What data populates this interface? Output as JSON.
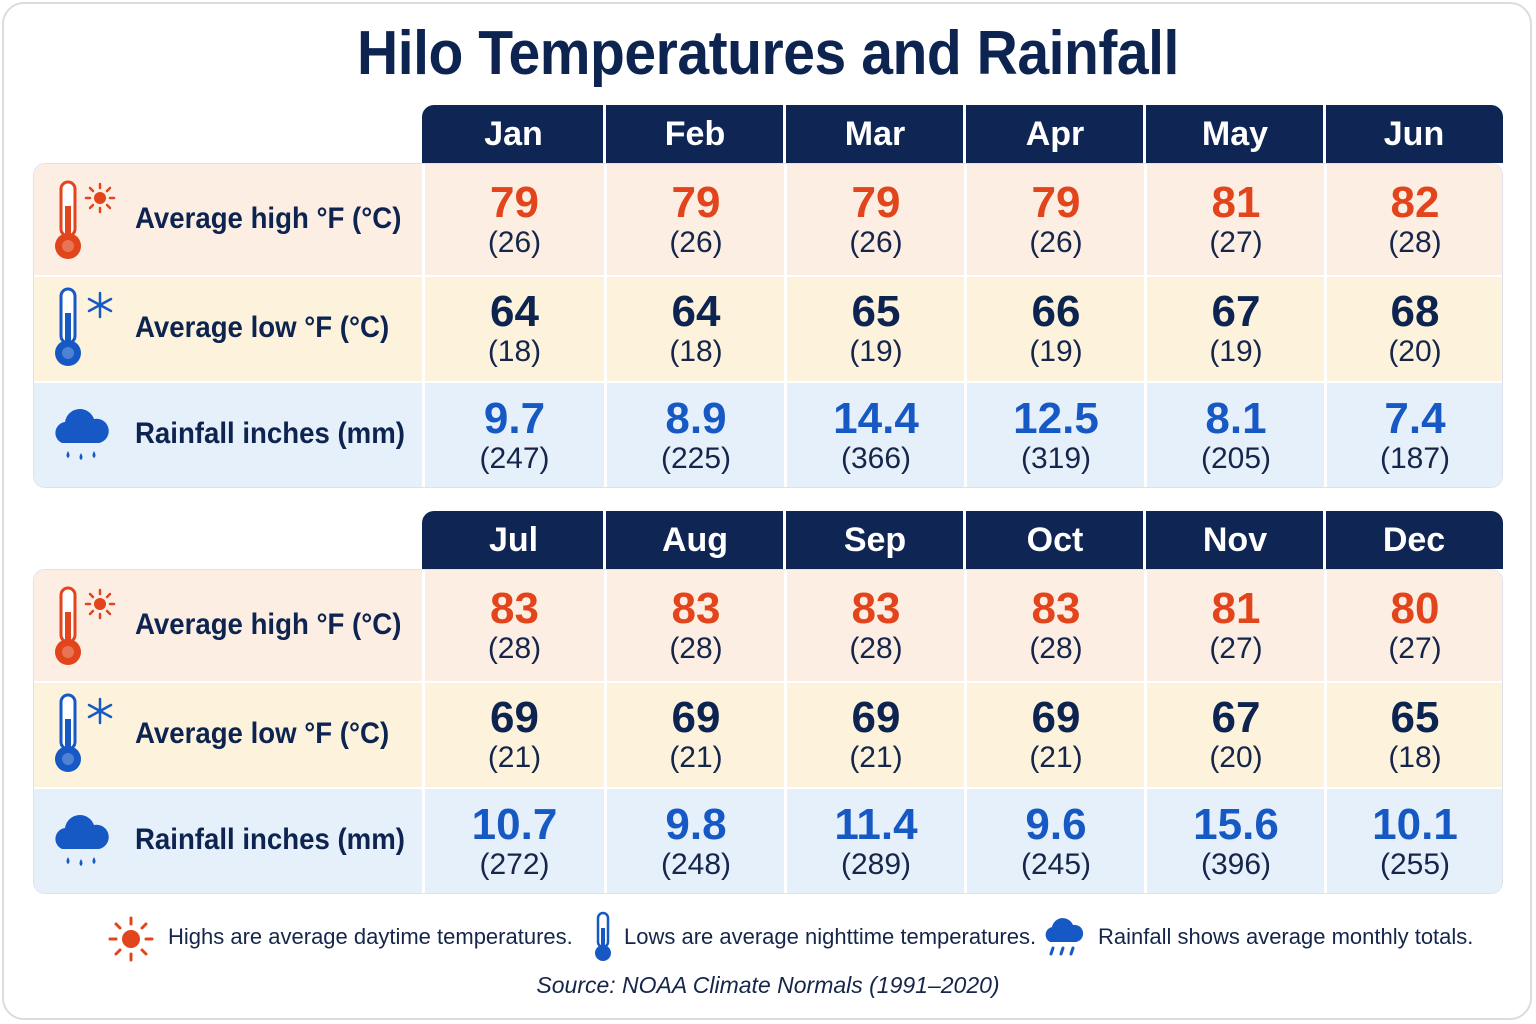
{
  "title": "Hilo Temperatures and Rainfall",
  "colors": {
    "high": "#e2441c",
    "low": "#0e2450",
    "rain": "#1659c4",
    "header": "#0f2554"
  },
  "chart_data": {
    "type": "table",
    "title": "Hilo Temperatures and Rainfall",
    "row_labels": [
      "Average high °F (°C)",
      "Average low °F (°C)",
      "Rainfall inches (mm)"
    ],
    "row_icons": [
      "thermometer-sun-icon",
      "thermometer-snow-icon",
      "rain-cloud-icon"
    ],
    "halves": [
      {
        "months": [
          "Jan",
          "Feb",
          "Mar",
          "Apr",
          "May",
          "Jun"
        ],
        "high_f": [
          "79",
          "79",
          "79",
          "79",
          "81",
          "82"
        ],
        "high_c": [
          "(26)",
          "(26)",
          "(26)",
          "(26)",
          "(27)",
          "(28)"
        ],
        "low_f": [
          "64",
          "64",
          "65",
          "66",
          "67",
          "68"
        ],
        "low_c": [
          "(18)",
          "(18)",
          "(19)",
          "(19)",
          "(19)",
          "(20)"
        ],
        "rain_in": [
          "9.7",
          "8.9",
          "14.4",
          "12.5",
          "8.1",
          "7.4"
        ],
        "rain_mm": [
          "(247)",
          "(225)",
          "(366)",
          "(319)",
          "(205)",
          "(187)"
        ]
      },
      {
        "months": [
          "Jul",
          "Aug",
          "Sep",
          "Oct",
          "Nov",
          "Dec"
        ],
        "high_f": [
          "83",
          "83",
          "83",
          "83",
          "81",
          "80"
        ],
        "high_c": [
          "(28)",
          "(28)",
          "(28)",
          "(28)",
          "(27)",
          "(27)"
        ],
        "low_f": [
          "69",
          "69",
          "69",
          "69",
          "67",
          "65"
        ],
        "low_c": [
          "(21)",
          "(21)",
          "(21)",
          "(21)",
          "(20)",
          "(18)"
        ],
        "rain_in": [
          "10.7",
          "9.8",
          "11.4",
          "9.6",
          "15.6",
          "10.1"
        ],
        "rain_mm": [
          "(272)",
          "(248)",
          "(289)",
          "(245)",
          "(396)",
          "(255)"
        ]
      }
    ]
  },
  "legend": [
    {
      "icon": "sun-icon",
      "text": "Highs are average daytime temperatures."
    },
    {
      "icon": "thermometer-icon",
      "text": "Lows are average nighttime temperatures."
    },
    {
      "icon": "rain-cloud-icon",
      "text": "Rainfall shows average monthly totals."
    }
  ],
  "source": "Source: NOAA Climate Normals (1991–2020)"
}
